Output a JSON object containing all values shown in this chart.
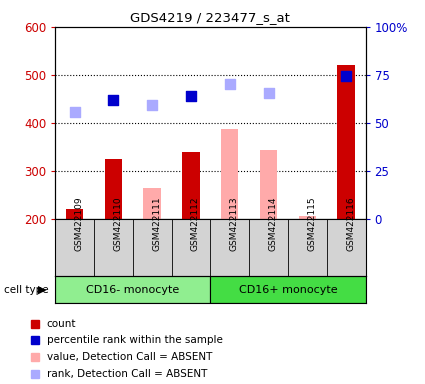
{
  "title": "GDS4219 / 223477_s_at",
  "samples": [
    "GSM422109",
    "GSM422110",
    "GSM422111",
    "GSM422112",
    "GSM422113",
    "GSM422114",
    "GSM422115",
    "GSM422116"
  ],
  "groups": [
    {
      "label": "CD16- monocyte",
      "color": "#90ee90",
      "indices": [
        0,
        1,
        2,
        3
      ]
    },
    {
      "label": "CD16+ monocyte",
      "color": "#44dd44",
      "indices": [
        4,
        5,
        6,
        7
      ]
    }
  ],
  "bar_values": [
    220,
    325,
    265,
    340,
    388,
    344,
    207,
    520
  ],
  "bar_colors": [
    "#cc0000",
    "#cc0000",
    "#ffaaaa",
    "#cc0000",
    "#ffaaaa",
    "#ffaaaa",
    "#ffaaaa",
    "#cc0000"
  ],
  "dot_values": [
    422,
    447,
    437,
    457,
    480,
    463,
    null,
    498
  ],
  "dot_colors": [
    "#aaaaff",
    "#0000cc",
    "#aaaaff",
    "#0000cc",
    "#aaaaff",
    "#aaaaff",
    null,
    "#0000cc"
  ],
  "ylim_left": [
    200,
    600
  ],
  "ylim_right": [
    0,
    100
  ],
  "yticks_left": [
    200,
    300,
    400,
    500,
    600
  ],
  "yticks_right": [
    0,
    25,
    50,
    75,
    100
  ],
  "ytick_labels_right": [
    "0",
    "25",
    "50",
    "75",
    "100%"
  ],
  "legend_items": [
    {
      "label": "count",
      "color": "#cc0000"
    },
    {
      "label": "percentile rank within the sample",
      "color": "#0000cc"
    },
    {
      "label": "value, Detection Call = ABSENT",
      "color": "#ffaaaa"
    },
    {
      "label": "rank, Detection Call = ABSENT",
      "color": "#aaaaff"
    }
  ],
  "cell_type_label": "cell type",
  "ylabel_left_color": "#cc0000",
  "ylabel_right_color": "#0000cc",
  "bar_width": 0.45,
  "dot_size": 55
}
